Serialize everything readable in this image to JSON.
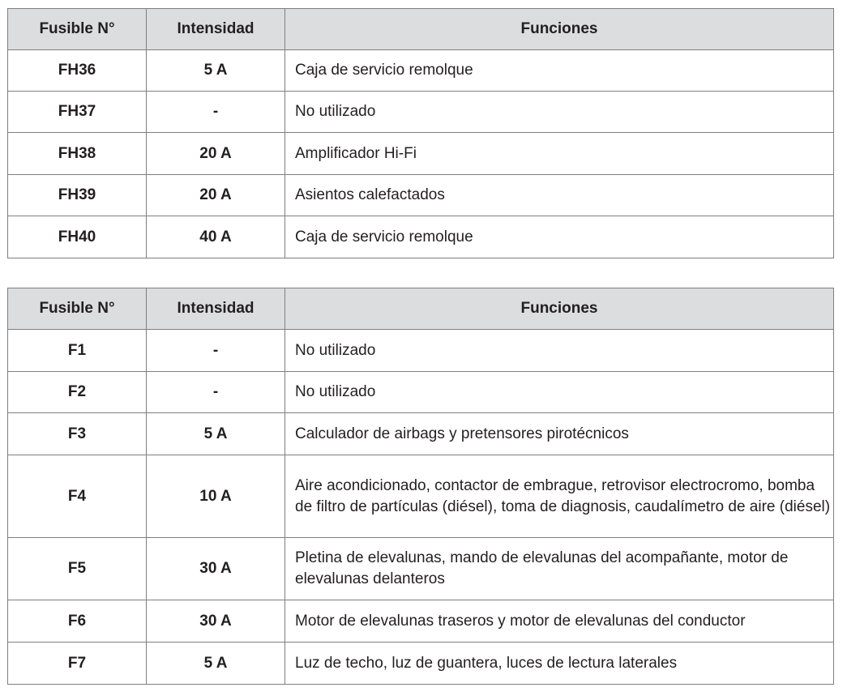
{
  "headers": {
    "fuse": "Fusible N°",
    "amp": "Intensidad",
    "func": "Funciones"
  },
  "table1": [
    {
      "fuse": "FH36",
      "amp": "5 A",
      "func": "Caja de servicio remolque"
    },
    {
      "fuse": "FH37",
      "amp": "-",
      "func": "No utilizado"
    },
    {
      "fuse": "FH38",
      "amp": "20 A",
      "func": "Amplificador Hi-Fi"
    },
    {
      "fuse": "FH39",
      "amp": "20 A",
      "func": "Asientos calefactados"
    },
    {
      "fuse": "FH40",
      "amp": "40 A",
      "func": "Caja de servicio remolque"
    }
  ],
  "table2": [
    {
      "fuse": "F1",
      "amp": "-",
      "func": "No utilizado"
    },
    {
      "fuse": "F2",
      "amp": "-",
      "func": "No utilizado"
    },
    {
      "fuse": "F3",
      "amp": "5 A",
      "func": "Calculador de airbags y pretensores pirotécnicos"
    },
    {
      "fuse": "F4",
      "amp": "10 A",
      "func": "Aire acondicionado, contactor de embrague, retrovisor electrocromo, bomba de filtro de partículas (diésel), toma de diagnosis, caudalímetro de aire (diésel)"
    },
    {
      "fuse": "F5",
      "amp": "30 A",
      "func": "Pletina de elevalunas, mando de elevalunas del acompañante, motor de elevalunas delanteros"
    },
    {
      "fuse": "F6",
      "amp": "30 A",
      "func": "Motor de elevalunas traseros y motor de elevalunas del conductor"
    },
    {
      "fuse": "F7",
      "amp": "5 A",
      "func": "Luz de techo, luz de guantera, luces de lectura laterales"
    }
  ]
}
